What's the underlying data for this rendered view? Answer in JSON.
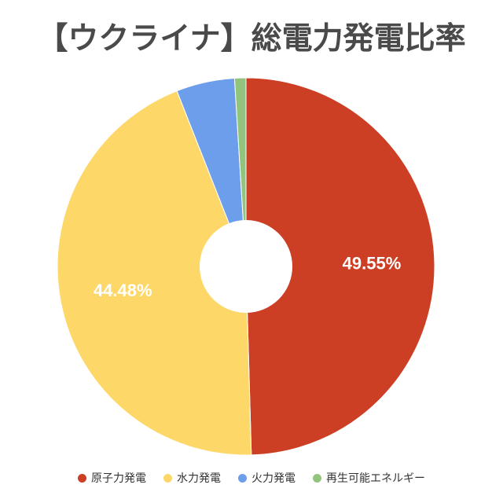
{
  "chart_data": {
    "type": "pie",
    "title": "【ウクライナ】総電力発電比率",
    "donut": true,
    "legend_position": "bottom",
    "slices": [
      {
        "name": "原子力発電",
        "value": 49.55,
        "label": "49.55%",
        "color": "#cc3f25"
      },
      {
        "name": "水力発電",
        "value": 44.48,
        "label": "44.48%",
        "color": "#fdd868"
      },
      {
        "name": "火力発電",
        "value": 5.0,
        "label": "",
        "color": "#6d9eeb"
      },
      {
        "name": "再生可能エネルギー",
        "value": 0.97,
        "label": "",
        "color": "#93c47d"
      }
    ]
  }
}
